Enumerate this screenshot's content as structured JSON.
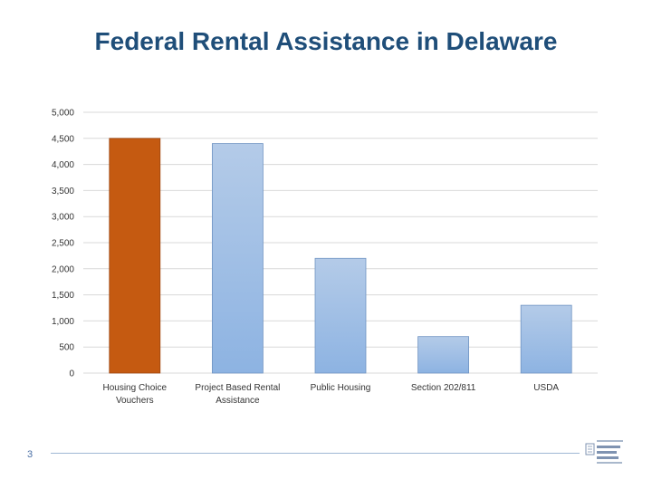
{
  "slide": {
    "title": "Federal Rental Assistance in Delaware",
    "page_number": "3"
  },
  "colors": {
    "title": "#1f4e79",
    "highlight_bar": "#c55a11",
    "bar_top": "#b4cbe8",
    "bar_bottom": "#8db3e2",
    "grid": "#d9d9d9",
    "footer_rule": "#9fb8d4"
  },
  "chart_data": {
    "type": "bar",
    "title": "",
    "xlabel": "",
    "ylabel": "",
    "ylim": [
      0,
      5000
    ],
    "yticks": [
      0,
      500,
      1000,
      1500,
      2000,
      2500,
      3000,
      3500,
      4000,
      4500,
      5000
    ],
    "ytick_labels": [
      "0",
      "500",
      "1,000",
      "1,500",
      "2,000",
      "2,500",
      "3,000",
      "3,500",
      "4,000",
      "4,500",
      "5,000"
    ],
    "grid": true,
    "categories": [
      [
        "Housing Choice",
        "Vouchers"
      ],
      [
        "Project Based Rental",
        "Assistance"
      ],
      [
        "Public Housing"
      ],
      [
        "Section 202/811"
      ],
      [
        "USDA"
      ]
    ],
    "values": [
      4500,
      4400,
      2200,
      700,
      1300
    ],
    "highlight_index": 0
  }
}
